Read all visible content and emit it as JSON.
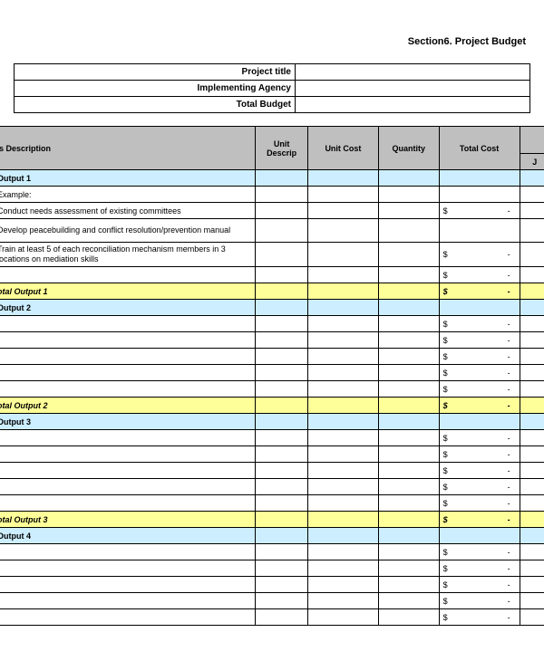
{
  "section_title": "Section6. Project Budget",
  "meta": {
    "rows": [
      {
        "label": "Project title",
        "value": ""
      },
      {
        "label": "Implementing Agency",
        "value": ""
      },
      {
        "label": "Total Budget",
        "value": ""
      }
    ]
  },
  "columns": {
    "description": "s Description",
    "unit_descrip": "Unit Descrip",
    "unit_cost": "Unit Cost",
    "quantity": "Quantity",
    "total_cost": "Total Cost",
    "j": "J"
  },
  "colors": {
    "header_bg": "#bfbfbf",
    "output_bg": "#cceeff",
    "subtotal_bg": "#ffff99",
    "border": "#000000",
    "page_bg": "#ffffff"
  },
  "currency_symbol": "$",
  "dash": "-",
  "sections": [
    {
      "title": "Output 1",
      "rows": [
        {
          "desc": "Example:",
          "total": ""
        },
        {
          "desc": "Conduct needs assessment of existing committees",
          "total": "$-"
        },
        {
          "desc": "Develop peacebuilding and conflict resolution/prevention manual",
          "total": ""
        },
        {
          "desc": "Train at least 5 of each reconciliation mechanism members in 3 locations on mediation skills",
          "total": "$-"
        },
        {
          "desc": "",
          "total": "$-"
        }
      ],
      "subtotal": {
        "label": "otal Output 1",
        "total": "$-"
      }
    },
    {
      "title": "Output 2",
      "rows": [
        {
          "desc": "",
          "total": "$-"
        },
        {
          "desc": "",
          "total": "$-"
        },
        {
          "desc": "",
          "total": "$-"
        },
        {
          "desc": "",
          "total": "$-"
        },
        {
          "desc": "",
          "total": "$-"
        }
      ],
      "subtotal": {
        "label": "otal Output 2",
        "total": "$-"
      }
    },
    {
      "title": "Output 3",
      "rows": [
        {
          "desc": "",
          "total": "$-"
        },
        {
          "desc": "",
          "total": "$-"
        },
        {
          "desc": "",
          "total": "$-"
        },
        {
          "desc": "",
          "total": "$-"
        },
        {
          "desc": "",
          "total": "$-"
        }
      ],
      "subtotal": {
        "label": "otal Output 3",
        "total": "$-"
      }
    },
    {
      "title": "Output 4",
      "rows": [
        {
          "desc": "",
          "total": "$-"
        },
        {
          "desc": "",
          "total": "$-"
        },
        {
          "desc": "",
          "total": "$-"
        },
        {
          "desc": "",
          "total": "$-"
        },
        {
          "desc": "",
          "total": "$-"
        }
      ],
      "subtotal": null
    }
  ]
}
